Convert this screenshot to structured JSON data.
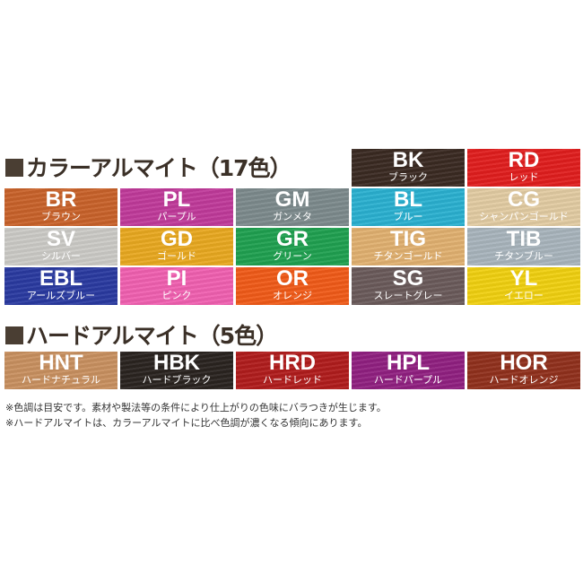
{
  "color_section": {
    "title": "カラーアルマイト（17色）",
    "swatches": [
      {
        "code": "BK",
        "name": "ブラック",
        "color": "#3a2a22"
      },
      {
        "code": "RD",
        "name": "レッド",
        "color": "#e01e1e"
      },
      {
        "code": "BR",
        "name": "ブラウン",
        "color": "#c8622a"
      },
      {
        "code": "PL",
        "name": "パープル",
        "color": "#c03a9a"
      },
      {
        "code": "GM",
        "name": "ガンメタ",
        "color": "#7c8a8c"
      },
      {
        "code": "BL",
        "name": "ブルー",
        "color": "#2ab0d0"
      },
      {
        "code": "CG",
        "name": "シャンパンゴールド",
        "color": "#e2cba2"
      },
      {
        "code": "SV",
        "name": "シルバー",
        "color": "#cbcac6"
      },
      {
        "code": "GD",
        "name": "ゴールド",
        "color": "#e8a820"
      },
      {
        "code": "GR",
        "name": "グリーン",
        "color": "#1fa050"
      },
      {
        "code": "TIG",
        "name": "チタンゴールド",
        "color": "#e0b070"
      },
      {
        "code": "TIB",
        "name": "チタンブルー",
        "color": "#a8b4bc"
      },
      {
        "code": "EBL",
        "name": "アールズブルー",
        "color": "#2a3aa0"
      },
      {
        "code": "PI",
        "name": "ピンク",
        "color": "#f060b0"
      },
      {
        "code": "OR",
        "name": "オレンジ",
        "color": "#f05a18"
      },
      {
        "code": "SG",
        "name": "スレートグレー",
        "color": "#6a5a5a"
      },
      {
        "code": "YL",
        "name": "イエロー",
        "color": "#f0d010"
      }
    ]
  },
  "hard_section": {
    "title": "ハードアルマイト（5色）",
    "swatches": [
      {
        "code": "HNT",
        "name": "ハードナチュラル",
        "color": "#c89060"
      },
      {
        "code": "HBK",
        "name": "ハードブラック",
        "color": "#2a2420"
      },
      {
        "code": "HRD",
        "name": "ハードレッド",
        "color": "#b01c1c"
      },
      {
        "code": "HPL",
        "name": "ハードパープル",
        "color": "#902080"
      },
      {
        "code": "HOR",
        "name": "ハードオレンジ",
        "color": "#90301c"
      }
    ]
  },
  "notes": [
    "※色調は目安です。素材や製法等の条件により仕上がりの色味にバラつきが生じます。",
    "※ハードアルマイトは、カラーアルマイトに比べ色調が濃くなる傾向にあります。"
  ]
}
